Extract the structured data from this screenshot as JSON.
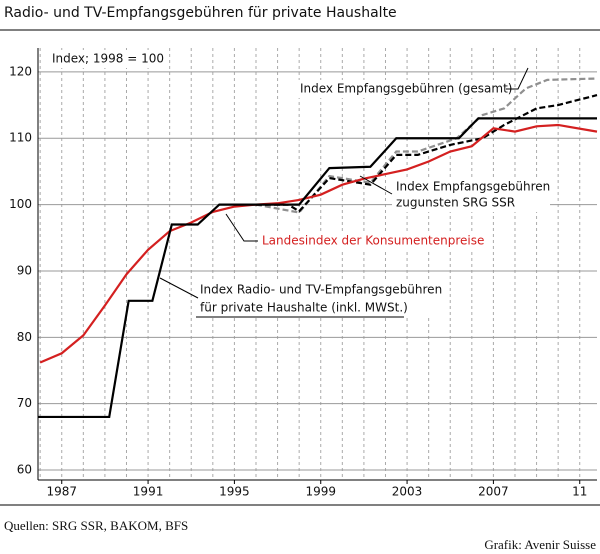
{
  "chart_data": {
    "type": "line",
    "title": "Radio- und TV-Empfangsgebühren für private Haushalte",
    "ylabel": "Index; 1998 = 100",
    "xlim": [
      1985.9,
      2011.8
    ],
    "ylim": [
      58.5,
      123.6
    ],
    "yticks": [
      60,
      70,
      80,
      90,
      100,
      110,
      120
    ],
    "xticks": [
      1987,
      1991,
      1995,
      1999,
      2003,
      2007,
      {
        "value": 2011,
        "label": "11"
      }
    ],
    "xgrid": [
      1986,
      1987,
      1988,
      1989,
      1990,
      1991,
      1992,
      1993,
      1994,
      1995,
      1996,
      1997,
      1998,
      1999,
      2000,
      2001,
      2002,
      2003,
      2004,
      2005,
      2006,
      2007,
      2008,
      2009,
      2010,
      2011
    ],
    "grid": true,
    "series": [
      {
        "name": "Index Radio- und TV-Empfangsgebühren für private Haushalte (inkl. MWSt.)",
        "color": "#000000",
        "dash": false,
        "x": [
          1985.9,
          1989.2,
          1990.1,
          1991.2,
          1992.1,
          1993.3,
          1994.3,
          1998,
          1999.4,
          2001.3,
          2002.5,
          2005.4,
          2006.3,
          2011.8
        ],
        "values": [
          68,
          68,
          85.5,
          85.5,
          97,
          97,
          100,
          100,
          105.5,
          105.7,
          110,
          110,
          113,
          113
        ]
      },
      {
        "name": "Landesindex der Konsumentenpreise",
        "color": "#d42020",
        "dash": false,
        "x": [
          1986,
          1987,
          1988,
          1989,
          1990,
          1991,
          1992,
          1993,
          1994,
          1995,
          1996,
          1997,
          1998,
          1999,
          2000,
          2001,
          2002,
          2003,
          2004,
          2005,
          2006,
          2007,
          2008,
          2009,
          2010,
          2011.8
        ],
        "values": [
          76.2,
          77.6,
          80.3,
          84.8,
          89.5,
          93.2,
          96.0,
          97.3,
          98.9,
          99.7,
          100.0,
          100.2,
          100.7,
          101.5,
          103.0,
          103.9,
          104.6,
          105.3,
          106.5,
          108.0,
          108.8,
          111.5,
          111.0,
          111.8,
          112.0,
          111.0
        ]
      },
      {
        "name": "Index Empfangsgebühren zugunsten SRG SSR",
        "color": "#000000",
        "dash": true,
        "x": [
          1996,
          1997.5,
          1998,
          1999.4,
          2001.3,
          2002.5,
          2003.5,
          2005,
          2006.5,
          2007.5,
          2009,
          2010,
          2011.8
        ],
        "values": [
          100,
          100,
          99,
          104,
          103,
          107.5,
          107.5,
          109,
          110,
          112,
          114.5,
          115,
          116.5
        ]
      },
      {
        "name": "Index Empfangsgebühren (gesamt)",
        "color": "#909090",
        "dash": true,
        "x": [
          1996,
          1998,
          1999.4,
          2001.3,
          2002.5,
          2003.5,
          2005.3,
          2006.5,
          2007.5,
          2008.5,
          2009.5,
          2011.8
        ],
        "values": [
          100,
          98.8,
          104.3,
          103.3,
          108,
          108,
          110,
          113.5,
          114.5,
          117.5,
          118.8,
          119
        ]
      }
    ],
    "annotations": [
      "Index Empfangsgebühren (gesamt)",
      "Index Empfangsgebühren",
      "zugunsten SRG SSR",
      "Landesindex der Konsumentenpreise",
      "Index Radio- und TV-Empfangsgebühren",
      "für private Haushalte (inkl. MWSt.)"
    ]
  },
  "footer": {
    "source": "Quellen: SRG SSR, BAKOM, BFS",
    "credit": "Grafik: Avenir Suisse"
  }
}
